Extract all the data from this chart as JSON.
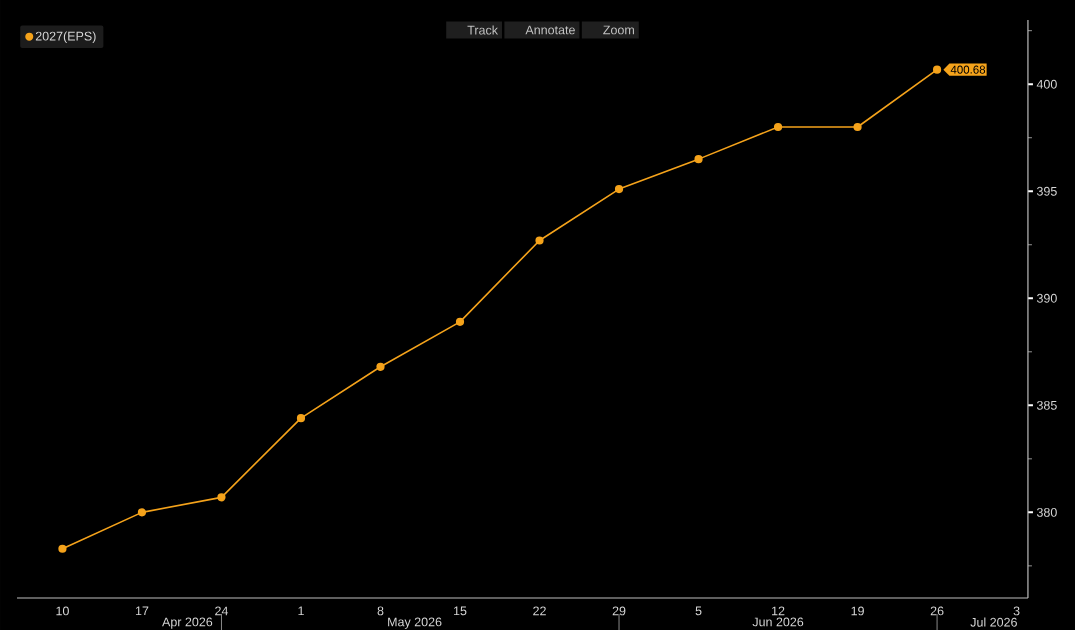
{
  "chart_data": {
    "type": "line",
    "x": [
      "2026-04-10",
      "2026-04-17",
      "2026-04-24",
      "2026-05-01",
      "2026-05-08",
      "2026-05-15",
      "2026-05-22",
      "2026-05-29",
      "2026-06-05",
      "2026-06-12",
      "2026-06-19",
      "2026-06-26"
    ],
    "series": [
      {
        "name": "2027(EPS)",
        "color": "#f5a31b",
        "values": [
          378.3,
          380.0,
          380.7,
          384.4,
          386.8,
          388.9,
          392.7,
          395.1,
          396.5,
          398.0,
          398.0,
          400.68
        ]
      }
    ],
    "xlim": [
      "2026-04-06",
      "2026-07-04"
    ],
    "xticks": [
      {
        "value": "2026-04-10",
        "label": "10"
      },
      {
        "value": "2026-04-17",
        "label": "17"
      },
      {
        "value": "2026-04-24",
        "label": "24"
      },
      {
        "value": "2026-05-01",
        "label": "1"
      },
      {
        "value": "2026-05-08",
        "label": "8"
      },
      {
        "value": "2026-05-15",
        "label": "15"
      },
      {
        "value": "2026-05-22",
        "label": "22"
      },
      {
        "value": "2026-05-29",
        "label": "29"
      },
      {
        "value": "2026-06-05",
        "label": "5"
      },
      {
        "value": "2026-06-12",
        "label": "12"
      },
      {
        "value": "2026-06-19",
        "label": "19"
      },
      {
        "value": "2026-06-26",
        "label": "26"
      },
      {
        "value": "2026-07-03",
        "label": "3"
      }
    ],
    "x2lim": [
      "2026-04-06",
      "2026-07-04"
    ],
    "x2ticks": [
      {
        "value": "2026-04-21",
        "label": "Apr 2026"
      },
      {
        "value": "2026-05-11",
        "label": "May 2026"
      },
      {
        "value": "2026-06-12",
        "label": "Jun 2026"
      },
      {
        "value": "2026-07-01",
        "label": "Jul 2026"
      }
    ],
    "ylim": [
      376,
      403
    ],
    "yticks": [
      {
        "value": 377.5,
        "label": null
      },
      380,
      {
        "value": 382.5,
        "label": null
      },
      385,
      {
        "value": 387.5,
        "label": null
      },
      390,
      {
        "value": 392.5,
        "label": null
      },
      395,
      {
        "value": 397.5,
        "label": null
      },
      400,
      {
        "value": 402.5,
        "label": null
      }
    ],
    "legend": "top left",
    "marker": "circle",
    "line_style": "solid",
    "annotations": [
      "Track",
      "Annotate",
      "Zoom",
      {
        "text": "400.68",
        "x": "2026-06-26",
        "y": 400.68
      }
    ]
  }
}
